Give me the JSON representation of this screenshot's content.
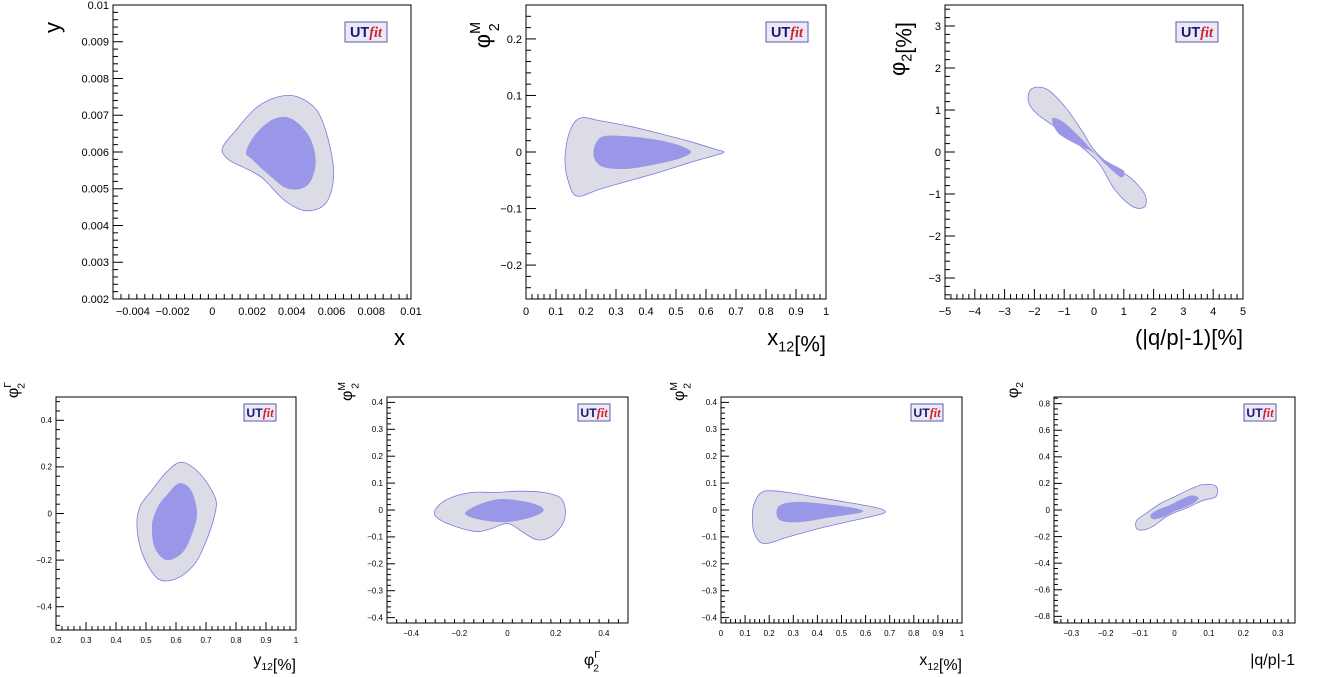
{
  "colors": {
    "outer_region": "#dcdce6",
    "inner_region": "#9a96e8",
    "region_outline": "#7a7ae0",
    "frame": "#000000",
    "logo_box": "#ece9f7",
    "logo_ut": "#1a1a6e",
    "logo_fit": "#d0202a"
  },
  "logo": {
    "ut": "UT",
    "fit": "fit"
  },
  "chart_data": [
    {
      "type": "contour",
      "xlabel": "x",
      "xsub": "",
      "ylabel": "y",
      "ysub": "",
      "ysup": "",
      "xlim": [
        -0.005,
        0.01
      ],
      "ylim": [
        0.002,
        0.01
      ],
      "xticks": [
        -0.004,
        -0.002,
        0,
        0.002,
        0.004,
        0.006,
        0.008,
        0.01
      ],
      "xtick_labels": [
        "−0.004",
        "−0.002",
        "0",
        "0.002",
        "0.004",
        "0.006",
        "0.008",
        "0.01"
      ],
      "yticks": [
        0.002,
        0.003,
        0.004,
        0.005,
        0.006,
        0.007,
        0.008,
        0.009,
        0.01
      ],
      "ytick_labels": [
        "0.002",
        "0.003",
        "0.004",
        "0.005",
        "0.006",
        "0.007",
        "0.008",
        "0.009",
        "0.01"
      ],
      "outer": [
        [
          0.0005,
          0.0061
        ],
        [
          0.0012,
          0.0066
        ],
        [
          0.0022,
          0.0072
        ],
        [
          0.0033,
          0.0075
        ],
        [
          0.0043,
          0.0075
        ],
        [
          0.0053,
          0.0071
        ],
        [
          0.0059,
          0.0062
        ],
        [
          0.0061,
          0.0053
        ],
        [
          0.0057,
          0.0046
        ],
        [
          0.0047,
          0.0044
        ],
        [
          0.0036,
          0.0047
        ],
        [
          0.0025,
          0.0053
        ],
        [
          0.0015,
          0.0056
        ],
        [
          0.0008,
          0.0058
        ]
      ],
      "inner": [
        [
          0.0017,
          0.006
        ],
        [
          0.0022,
          0.0065
        ],
        [
          0.0031,
          0.0069
        ],
        [
          0.004,
          0.0069
        ],
        [
          0.0049,
          0.0064
        ],
        [
          0.0052,
          0.0057
        ],
        [
          0.0048,
          0.0051
        ],
        [
          0.0038,
          0.005
        ],
        [
          0.0028,
          0.0054
        ],
        [
          0.002,
          0.0058
        ]
      ]
    },
    {
      "type": "contour",
      "xlabel": "x",
      "xsub": "12",
      "xunit": "[%]",
      "ylabel": "φ",
      "ysub": "2",
      "ysup": "M",
      "xlim": [
        0,
        1
      ],
      "ylim": [
        -0.26,
        0.26
      ],
      "xticks": [
        0,
        0.1,
        0.2,
        0.3,
        0.4,
        0.5,
        0.6,
        0.7,
        0.8,
        0.9,
        1
      ],
      "xtick_labels": [
        "0",
        "0.1",
        "0.2",
        "0.3",
        "0.4",
        "0.5",
        "0.6",
        "0.7",
        "0.8",
        "0.9",
        "1"
      ],
      "yticks": [
        -0.2,
        -0.1,
        0,
        0.1,
        0.2
      ],
      "ytick_labels": [
        "−0.2",
        "−0.1",
        "0",
        "0.1",
        "0.2"
      ],
      "outer": [
        [
          0.18,
          0.06
        ],
        [
          0.25,
          0.055
        ],
        [
          0.35,
          0.045
        ],
        [
          0.45,
          0.032
        ],
        [
          0.55,
          0.018
        ],
        [
          0.63,
          0.005
        ],
        [
          0.66,
          0.0
        ],
        [
          0.63,
          -0.006
        ],
        [
          0.55,
          -0.018
        ],
        [
          0.45,
          -0.035
        ],
        [
          0.35,
          -0.05
        ],
        [
          0.25,
          -0.065
        ],
        [
          0.17,
          -0.078
        ],
        [
          0.14,
          -0.05
        ],
        [
          0.13,
          -0.01
        ],
        [
          0.145,
          0.035
        ]
      ],
      "inner": [
        [
          0.25,
          0.026
        ],
        [
          0.33,
          0.028
        ],
        [
          0.43,
          0.022
        ],
        [
          0.51,
          0.012
        ],
        [
          0.55,
          0.0
        ],
        [
          0.51,
          -0.012
        ],
        [
          0.43,
          -0.022
        ],
        [
          0.33,
          -0.03
        ],
        [
          0.25,
          -0.025
        ],
        [
          0.225,
          -0.002
        ]
      ]
    },
    {
      "type": "contour",
      "xlabel": "(|q/p|-1)",
      "xsub": "",
      "xunit": "[%]",
      "ylabel": "φ",
      "ysub": "2",
      "ysup": "",
      "yunit": "[%]",
      "xlim": [
        -5,
        5
      ],
      "ylim": [
        -3.5,
        3.5
      ],
      "xticks": [
        -5,
        -4,
        -3,
        -2,
        -1,
        0,
        1,
        2,
        3,
        4,
        5
      ],
      "xtick_labels": [
        "−5",
        "−4",
        "−3",
        "−2",
        "−1",
        "0",
        "1",
        "2",
        "3",
        "4",
        "5"
      ],
      "yticks": [
        -3,
        -2,
        -1,
        0,
        1,
        2,
        3
      ],
      "ytick_labels": [
        "−3",
        "−2",
        "−1",
        "0",
        "1",
        "2",
        "3"
      ],
      "outer": [
        [
          -2.1,
          1.5
        ],
        [
          -1.6,
          1.5
        ],
        [
          -1.0,
          1.1
        ],
        [
          -0.4,
          0.5
        ],
        [
          0.0,
          0.05
        ],
        [
          0.6,
          -0.35
        ],
        [
          1.2,
          -0.6
        ],
        [
          1.7,
          -1.0
        ],
        [
          1.7,
          -1.3
        ],
        [
          1.3,
          -1.3
        ],
        [
          0.7,
          -0.9
        ],
        [
          0.2,
          -0.3
        ],
        [
          -0.3,
          0.05
        ],
        [
          -1.1,
          0.5
        ],
        [
          -1.9,
          0.9
        ],
        [
          -2.2,
          1.2
        ]
      ],
      "inner": [
        [
          -1.4,
          0.8
        ],
        [
          -1.0,
          0.7
        ],
        [
          -0.4,
          0.3
        ],
        [
          0.0,
          0.0
        ],
        [
          0.5,
          -0.25
        ],
        [
          1.0,
          -0.45
        ],
        [
          0.9,
          -0.6
        ],
        [
          0.4,
          -0.3
        ],
        [
          0.0,
          -0.02
        ],
        [
          -0.5,
          0.15
        ],
        [
          -1.2,
          0.45
        ]
      ]
    },
    {
      "type": "contour",
      "xlabel": "y",
      "xsub": "12",
      "xunit": "[%]",
      "ylabel": "φ",
      "ysub": "2",
      "ysup": "Γ",
      "xlim": [
        0.2,
        1
      ],
      "ylim": [
        -0.5,
        0.5
      ],
      "xticks": [
        0.2,
        0.3,
        0.4,
        0.5,
        0.6,
        0.7,
        0.8,
        0.9,
        1
      ],
      "xtick_labels": [
        "0.2",
        "0.3",
        "0.4",
        "0.5",
        "0.6",
        "0.7",
        "0.8",
        "0.9",
        "1"
      ],
      "yticks": [
        -0.4,
        -0.2,
        0,
        0.2,
        0.4
      ],
      "ytick_labels": [
        "−0.4",
        "−0.2",
        "0",
        "0.2",
        "0.4"
      ],
      "outer": [
        [
          0.62,
          0.22
        ],
        [
          0.68,
          0.17
        ],
        [
          0.73,
          0.07
        ],
        [
          0.73,
          0.0
        ],
        [
          0.7,
          -0.12
        ],
        [
          0.66,
          -0.22
        ],
        [
          0.6,
          -0.28
        ],
        [
          0.54,
          -0.28
        ],
        [
          0.49,
          -0.18
        ],
        [
          0.47,
          -0.06
        ],
        [
          0.48,
          0.03
        ],
        [
          0.52,
          0.1
        ],
        [
          0.57,
          0.18
        ]
      ],
      "inner": [
        [
          0.61,
          0.13
        ],
        [
          0.65,
          0.1
        ],
        [
          0.67,
          0.0
        ],
        [
          0.65,
          -0.1
        ],
        [
          0.62,
          -0.17
        ],
        [
          0.57,
          -0.2
        ],
        [
          0.53,
          -0.15
        ],
        [
          0.52,
          -0.05
        ],
        [
          0.54,
          0.03
        ],
        [
          0.57,
          0.08
        ]
      ]
    },
    {
      "type": "contour",
      "xlabel": "φ",
      "xsub": "2",
      "xsup": "Γ",
      "xunit": "",
      "ylabel": "φ",
      "ysub": "2",
      "ysup": "M",
      "xlim": [
        -0.5,
        0.5
      ],
      "ylim": [
        -0.42,
        0.42
      ],
      "xticks": [
        -0.4,
        -0.2,
        0,
        0.2,
        0.4
      ],
      "xtick_labels": [
        "−0.4",
        "−0.2",
        "0",
        "0.2",
        "0.4"
      ],
      "yticks": [
        -0.4,
        -0.3,
        -0.2,
        -0.1,
        0,
        0.1,
        0.2,
        0.3,
        0.4
      ],
      "ytick_labels": [
        "−0.4",
        "−0.3",
        "−0.2",
        "−0.1",
        "0",
        "0.1",
        "0.2",
        "0.3",
        "0.4"
      ],
      "outer": [
        [
          -0.3,
          0.0
        ],
        [
          -0.25,
          0.04
        ],
        [
          -0.15,
          0.065
        ],
        [
          -0.05,
          0.065
        ],
        [
          0.05,
          0.07
        ],
        [
          0.15,
          0.065
        ],
        [
          0.22,
          0.045
        ],
        [
          0.24,
          0.0
        ],
        [
          0.23,
          -0.05
        ],
        [
          0.18,
          -0.1
        ],
        [
          0.12,
          -0.11
        ],
        [
          0.06,
          -0.08
        ],
        [
          0.0,
          -0.05
        ],
        [
          -0.07,
          -0.07
        ],
        [
          -0.13,
          -0.08
        ],
        [
          -0.22,
          -0.06
        ],
        [
          -0.29,
          -0.03
        ]
      ],
      "inner": [
        [
          -0.17,
          -0.005
        ],
        [
          -0.12,
          0.02
        ],
        [
          -0.04,
          0.04
        ],
        [
          0.05,
          0.035
        ],
        [
          0.12,
          0.02
        ],
        [
          0.15,
          0.0
        ],
        [
          0.12,
          -0.02
        ],
        [
          0.04,
          -0.04
        ],
        [
          -0.04,
          -0.045
        ],
        [
          -0.12,
          -0.035
        ],
        [
          -0.17,
          -0.02
        ]
      ]
    },
    {
      "type": "contour",
      "xlabel": "x",
      "xsub": "12",
      "xunit": "[%]",
      "ylabel": "φ",
      "ysub": "2",
      "ysup": "M",
      "xlim": [
        0,
        1
      ],
      "ylim": [
        -0.42,
        0.42
      ],
      "xticks": [
        0,
        0.1,
        0.2,
        0.3,
        0.4,
        0.5,
        0.6,
        0.7,
        0.8,
        0.9,
        1
      ],
      "xtick_labels": [
        "0",
        "0.1",
        "0.2",
        "0.3",
        "0.4",
        "0.5",
        "0.6",
        "0.7",
        "0.8",
        "0.9",
        "1"
      ],
      "yticks": [
        -0.4,
        -0.3,
        -0.2,
        -0.1,
        0,
        0.1,
        0.2,
        0.3,
        0.4
      ],
      "ytick_labels": [
        "−0.4",
        "−0.3",
        "−0.2",
        "−0.1",
        "0",
        "0.1",
        "0.2",
        "0.3",
        "0.4"
      ],
      "outer": [
        [
          0.18,
          0.07
        ],
        [
          0.28,
          0.065
        ],
        [
          0.38,
          0.05
        ],
        [
          0.48,
          0.035
        ],
        [
          0.58,
          0.02
        ],
        [
          0.66,
          0.005
        ],
        [
          0.68,
          -0.01
        ],
        [
          0.62,
          -0.025
        ],
        [
          0.52,
          -0.045
        ],
        [
          0.4,
          -0.07
        ],
        [
          0.28,
          -0.1
        ],
        [
          0.18,
          -0.125
        ],
        [
          0.14,
          -0.09
        ],
        [
          0.13,
          -0.03
        ],
        [
          0.14,
          0.03
        ]
      ],
      "inner": [
        [
          0.25,
          0.02
        ],
        [
          0.33,
          0.03
        ],
        [
          0.45,
          0.02
        ],
        [
          0.55,
          0.008
        ],
        [
          0.59,
          -0.005
        ],
        [
          0.55,
          -0.015
        ],
        [
          0.45,
          -0.028
        ],
        [
          0.33,
          -0.045
        ],
        [
          0.25,
          -0.04
        ],
        [
          0.23,
          -0.01
        ]
      ]
    },
    {
      "type": "contour",
      "xlabel": "|q/p|-1",
      "xsub": "",
      "xunit": "",
      "ylabel": "φ",
      "ysub": "2",
      "ysup": "",
      "xlim": [
        -0.35,
        0.35
      ],
      "ylim": [
        -0.85,
        0.85
      ],
      "xticks": [
        -0.3,
        -0.2,
        -0.1,
        0,
        0.1,
        0.2,
        0.3
      ],
      "xtick_labels": [
        "−0.3",
        "−0.2",
        "−0.1",
        "0",
        "0.1",
        "0.2",
        "0.3"
      ],
      "yticks": [
        -0.8,
        -0.6,
        -0.4,
        -0.2,
        0,
        0.2,
        0.4,
        0.6,
        0.8
      ],
      "ytick_labels": [
        "−0.8",
        "−0.6",
        "−0.4",
        "−0.2",
        "0",
        "0.2",
        "0.4",
        "0.6",
        "0.8"
      ],
      "outer": [
        [
          -0.06,
          -0.12
        ],
        [
          -0.03,
          -0.06
        ],
        [
          0.0,
          -0.02
        ],
        [
          0.04,
          0.02
        ],
        [
          0.08,
          0.07
        ],
        [
          0.12,
          0.1
        ],
        [
          0.12,
          0.18
        ],
        [
          0.08,
          0.19
        ],
        [
          0.04,
          0.15
        ],
        [
          0.0,
          0.1
        ],
        [
          -0.04,
          0.05
        ],
        [
          -0.08,
          -0.02
        ],
        [
          -0.11,
          -0.08
        ],
        [
          -0.11,
          -0.14
        ],
        [
          -0.09,
          -0.15
        ]
      ],
      "inner": [
        [
          -0.06,
          -0.07
        ],
        [
          -0.03,
          -0.05
        ],
        [
          0.0,
          -0.01
        ],
        [
          0.04,
          0.03
        ],
        [
          0.06,
          0.06
        ],
        [
          0.07,
          0.09
        ],
        [
          0.05,
          0.11
        ],
        [
          0.02,
          0.08
        ],
        [
          -0.02,
          0.03
        ],
        [
          -0.05,
          0.0
        ],
        [
          -0.07,
          -0.04
        ]
      ]
    }
  ]
}
